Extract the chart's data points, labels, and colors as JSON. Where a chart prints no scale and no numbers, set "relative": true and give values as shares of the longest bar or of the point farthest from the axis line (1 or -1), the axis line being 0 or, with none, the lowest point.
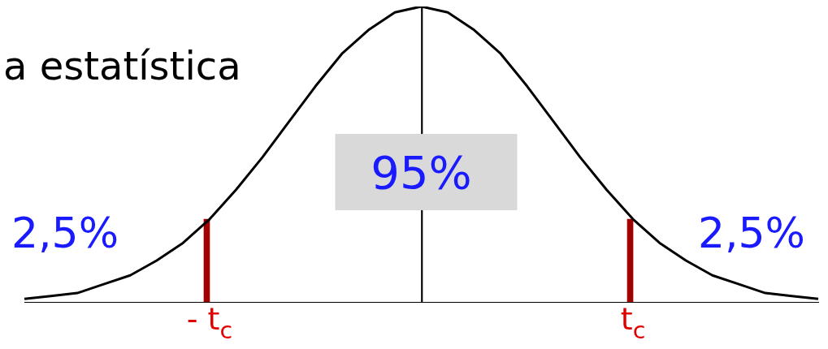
{
  "chart_data": {
    "type": "line",
    "relative": true,
    "categories": [
      null,
      null,
      null,
      null,
      null,
      null,
      null,
      "- t$_{c}$",
      null,
      null,
      null,
      null,
      null,
      null,
      null,
      null,
      null,
      null,
      null,
      null,
      null,
      null,
      null,
      "t$_{c}$",
      null,
      null,
      null,
      null,
      null,
      null,
      null
    ],
    "series": [
      {
        "color": "#000000",
        "values": [
          0.01,
          0.02,
          0.03,
          0.06,
          0.09,
          0.14,
          0.2,
          0.28,
          0.38,
          0.49,
          0.61,
          0.73,
          0.84,
          0.92,
          0.98,
          1,
          0.98,
          0.92,
          0.84,
          0.73,
          0.61,
          0.49,
          0.38,
          0.28,
          0.2,
          0.14,
          0.09,
          0.06,
          0.03,
          0.02,
          0.01
        ]
      },
      {
        "type": "bar",
        "color": "#a00000",
        "values": [
          null,
          null,
          null,
          null,
          null,
          null,
          null,
          0.28,
          null,
          null,
          null,
          null,
          null,
          null,
          null,
          null,
          null,
          null,
          null,
          null,
          null,
          null,
          null,
          0.28,
          null,
          null,
          null,
          null,
          null,
          null,
          null
        ]
      },
      {
        "type": "bar",
        "color": "#000000",
        "values": [
          null,
          null,
          null,
          null,
          null,
          null,
          null,
          null,
          null,
          null,
          null,
          null,
          null,
          null,
          null,
          1,
          null,
          null,
          null,
          null,
          null,
          null,
          null,
          null,
          null,
          null,
          null,
          null,
          null,
          null,
          null
        ]
      }
    ],
    "annotations": [
      "a estatística",
      "95%",
      "2,5%",
      "2,5%"
    ],
    "grid": false,
    "legend": false,
    "marker": "none",
    "line_style": "solid"
  }
}
